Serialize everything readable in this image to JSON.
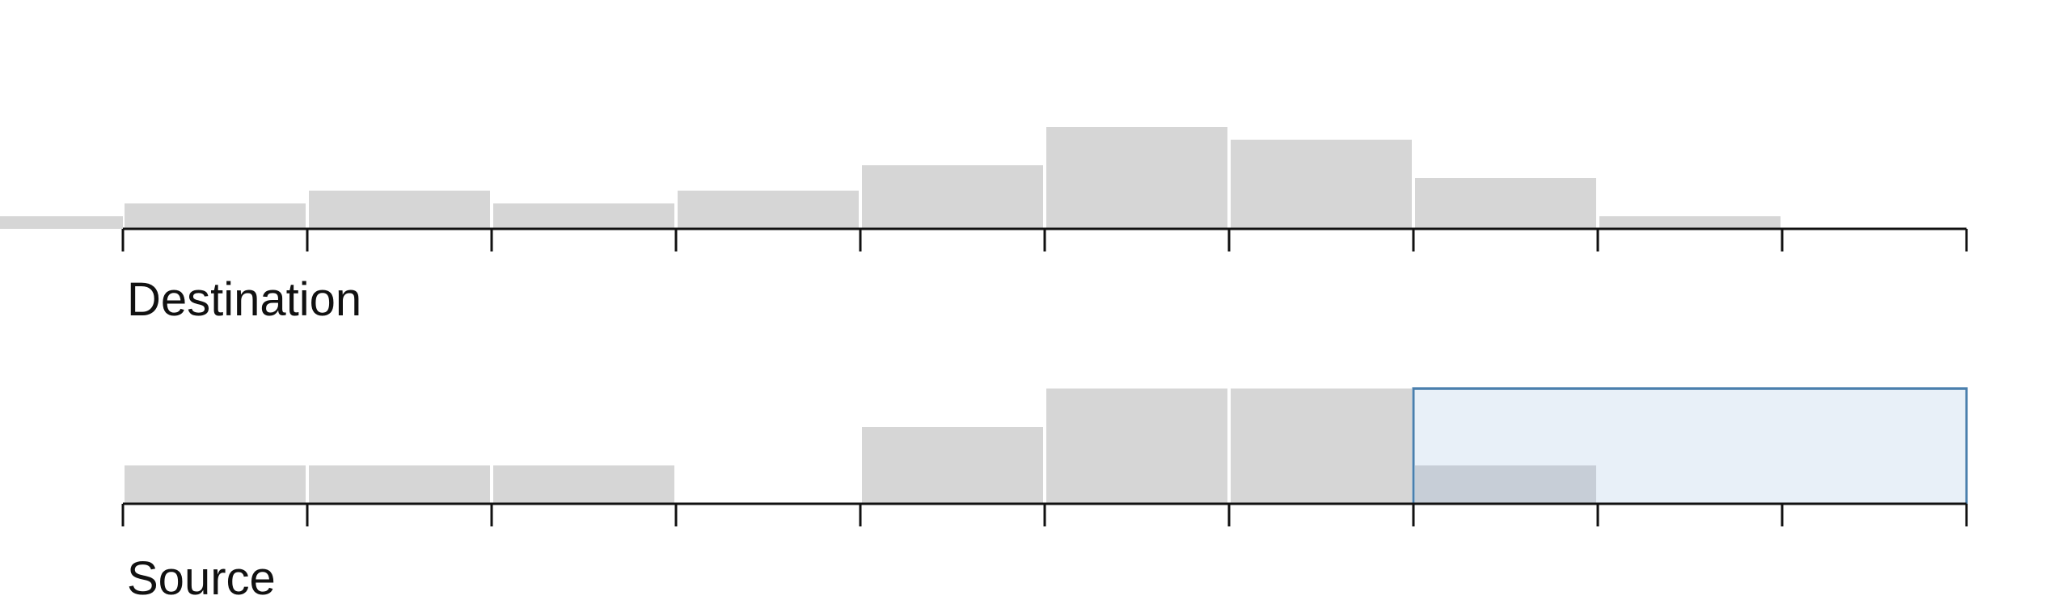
{
  "chart_data": [
    {
      "type": "bar",
      "label": "Destination",
      "bins": 11,
      "values": [
        1,
        2,
        3,
        2,
        3,
        5,
        8,
        7,
        4,
        1,
        0
      ],
      "bar_color": "#d6d6d6"
    },
    {
      "type": "bar",
      "label": "Source",
      "bins": 10,
      "values": [
        1,
        1,
        1,
        0,
        2,
        3,
        3,
        1,
        0,
        0
      ],
      "bar_color": "#d6d6d6",
      "selection": {
        "from_bin": 7,
        "to_bin": 10,
        "fill": "#e8f0f8",
        "stroke": "#4a7fad",
        "selected_bar_color": "#c7ced7"
      }
    }
  ],
  "colors": {
    "axis": "#111111",
    "background": "#ffffff"
  }
}
